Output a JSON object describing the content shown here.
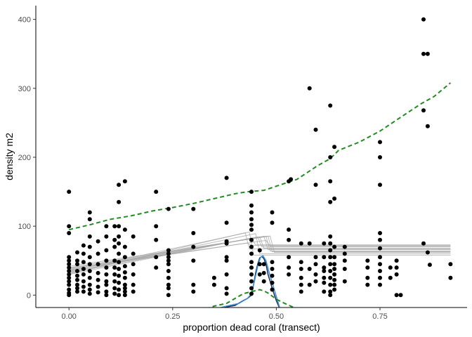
{
  "chart_data": {
    "type": "scatter",
    "title": "",
    "xlabel": "proportion dead coral (transect)",
    "ylabel": "density m2",
    "xlim": [
      -0.08,
      0.96
    ],
    "ylim": [
      -18,
      420
    ],
    "x_ticks": [
      0.0,
      0.25,
      0.5,
      0.75
    ],
    "x_tick_labels": [
      "0.00",
      "0.25",
      "0.50",
      "0.75"
    ],
    "y_ticks": [
      0,
      100,
      200,
      300,
      400
    ],
    "y_tick_labels": [
      "0",
      "100",
      "200",
      "300",
      "400"
    ],
    "grid": false,
    "legend": "none",
    "colors": {
      "points": "#000000",
      "breakpoint_fits": "#a6a6a6",
      "density_dashed": "#228b22",
      "density_dark": "#1f2a5a",
      "density_blue": "#3a8fd8",
      "axis": "#000000"
    },
    "points": [
      [
        0.0,
        150
      ],
      [
        0.0,
        100
      ],
      [
        0.0,
        90
      ],
      [
        0.0,
        55
      ],
      [
        0.0,
        50
      ],
      [
        0.0,
        45
      ],
      [
        0.0,
        40
      ],
      [
        0.0,
        35
      ],
      [
        0.0,
        30
      ],
      [
        0.0,
        25
      ],
      [
        0.0,
        20
      ],
      [
        0.0,
        15
      ],
      [
        0.0,
        8
      ],
      [
        0.0,
        3
      ],
      [
        0.0,
        0
      ],
      [
        0.02,
        62
      ],
      [
        0.02,
        50
      ],
      [
        0.02,
        45
      ],
      [
        0.02,
        35
      ],
      [
        0.02,
        28
      ],
      [
        0.02,
        22
      ],
      [
        0.02,
        15
      ],
      [
        0.02,
        10
      ],
      [
        0.02,
        5
      ],
      [
        0.035,
        72
      ],
      [
        0.035,
        60
      ],
      [
        0.035,
        48
      ],
      [
        0.035,
        38
      ],
      [
        0.035,
        30
      ],
      [
        0.035,
        20
      ],
      [
        0.035,
        12
      ],
      [
        0.035,
        5
      ],
      [
        0.05,
        120
      ],
      [
        0.05,
        110
      ],
      [
        0.05,
        85
      ],
      [
        0.05,
        70
      ],
      [
        0.05,
        55
      ],
      [
        0.05,
        45
      ],
      [
        0.05,
        35
      ],
      [
        0.05,
        25
      ],
      [
        0.05,
        15
      ],
      [
        0.05,
        8
      ],
      [
        0.05,
        2
      ],
      [
        0.07,
        78
      ],
      [
        0.07,
        60
      ],
      [
        0.07,
        45
      ],
      [
        0.07,
        32
      ],
      [
        0.07,
        22
      ],
      [
        0.07,
        12
      ],
      [
        0.07,
        4
      ],
      [
        0.09,
        100
      ],
      [
        0.09,
        85
      ],
      [
        0.09,
        65
      ],
      [
        0.09,
        50
      ],
      [
        0.09,
        40
      ],
      [
        0.09,
        30
      ],
      [
        0.09,
        20
      ],
      [
        0.09,
        15
      ],
      [
        0.09,
        5
      ],
      [
        0.09,
        0
      ],
      [
        0.11,
        100
      ],
      [
        0.11,
        80
      ],
      [
        0.11,
        70
      ],
      [
        0.11,
        50
      ],
      [
        0.11,
        40
      ],
      [
        0.11,
        30
      ],
      [
        0.11,
        20
      ],
      [
        0.11,
        10
      ],
      [
        0.11,
        2
      ],
      [
        0.12,
        160
      ],
      [
        0.12,
        135
      ],
      [
        0.12,
        100
      ],
      [
        0.12,
        85
      ],
      [
        0.12,
        75
      ],
      [
        0.12,
        60
      ],
      [
        0.12,
        48
      ],
      [
        0.12,
        38
      ],
      [
        0.12,
        28
      ],
      [
        0.12,
        18
      ],
      [
        0.12,
        8
      ],
      [
        0.12,
        0
      ],
      [
        0.135,
        165
      ],
      [
        0.135,
        95
      ],
      [
        0.135,
        70
      ],
      [
        0.135,
        55
      ],
      [
        0.135,
        42
      ],
      [
        0.135,
        33
      ],
      [
        0.135,
        25
      ],
      [
        0.135,
        15
      ],
      [
        0.135,
        10
      ],
      [
        0.135,
        5
      ],
      [
        0.135,
        0
      ],
      [
        0.155,
        85
      ],
      [
        0.155,
        60
      ],
      [
        0.155,
        45
      ],
      [
        0.155,
        30
      ],
      [
        0.155,
        15
      ],
      [
        0.155,
        5
      ],
      [
        0.21,
        150
      ],
      [
        0.21,
        100
      ],
      [
        0.21,
        80
      ],
      [
        0.21,
        55
      ],
      [
        0.21,
        40
      ],
      [
        0.24,
        125
      ],
      [
        0.24,
        65
      ],
      [
        0.24,
        60
      ],
      [
        0.24,
        55
      ],
      [
        0.24,
        50
      ],
      [
        0.24,
        45
      ],
      [
        0.24,
        35
      ],
      [
        0.24,
        25
      ],
      [
        0.24,
        15
      ],
      [
        0.24,
        10
      ],
      [
        0.24,
        0
      ],
      [
        0.3,
        125
      ],
      [
        0.3,
        90
      ],
      [
        0.3,
        70
      ],
      [
        0.3,
        50
      ],
      [
        0.3,
        15
      ],
      [
        0.3,
        5
      ],
      [
        0.35,
        25
      ],
      [
        0.35,
        15
      ],
      [
        0.38,
        170
      ],
      [
        0.38,
        105
      ],
      [
        0.38,
        78
      ],
      [
        0.38,
        75
      ],
      [
        0.38,
        55
      ],
      [
        0.38,
        50
      ],
      [
        0.38,
        30
      ],
      [
        0.38,
        10
      ],
      [
        0.38,
        2
      ],
      [
        0.44,
        150
      ],
      [
        0.44,
        130
      ],
      [
        0.44,
        120
      ],
      [
        0.44,
        110
      ],
      [
        0.44,
        102
      ],
      [
        0.44,
        95
      ],
      [
        0.44,
        80
      ],
      [
        0.44,
        70
      ],
      [
        0.44,
        60
      ],
      [
        0.44,
        48
      ],
      [
        0.44,
        40
      ],
      [
        0.44,
        30
      ],
      [
        0.44,
        20
      ],
      [
        0.44,
        10
      ],
      [
        0.44,
        2
      ],
      [
        0.46,
        65
      ],
      [
        0.46,
        45
      ],
      [
        0.46,
        30
      ],
      [
        0.47,
        45
      ],
      [
        0.47,
        32
      ],
      [
        0.47,
        20
      ],
      [
        0.49,
        120
      ],
      [
        0.49,
        105
      ],
      [
        0.49,
        48
      ],
      [
        0.49,
        38
      ],
      [
        0.49,
        28
      ],
      [
        0.49,
        18
      ],
      [
        0.49,
        8
      ],
      [
        0.53,
        165
      ],
      [
        0.53,
        95
      ],
      [
        0.53,
        80
      ],
      [
        0.53,
        55
      ],
      [
        0.53,
        40
      ],
      [
        0.53,
        30
      ],
      [
        0.535,
        168
      ],
      [
        0.56,
        75
      ],
      [
        0.56,
        48
      ],
      [
        0.56,
        38
      ],
      [
        0.56,
        25
      ],
      [
        0.56,
        15
      ],
      [
        0.56,
        5
      ],
      [
        0.58,
        300
      ],
      [
        0.58,
        75
      ],
      [
        0.58,
        38
      ],
      [
        0.58,
        15
      ],
      [
        0.595,
        240
      ],
      [
        0.595,
        160
      ],
      [
        0.595,
        55
      ],
      [
        0.595,
        45
      ],
      [
        0.595,
        30
      ],
      [
        0.595,
        20
      ],
      [
        0.615,
        75
      ],
      [
        0.615,
        55
      ],
      [
        0.615,
        40
      ],
      [
        0.615,
        35
      ],
      [
        0.615,
        25
      ],
      [
        0.615,
        18
      ],
      [
        0.615,
        5
      ],
      [
        0.63,
        275
      ],
      [
        0.63,
        200
      ],
      [
        0.63,
        165
      ],
      [
        0.63,
        135
      ],
      [
        0.63,
        85
      ],
      [
        0.63,
        75
      ],
      [
        0.63,
        65
      ],
      [
        0.63,
        55
      ],
      [
        0.63,
        45
      ],
      [
        0.63,
        35
      ],
      [
        0.63,
        25
      ],
      [
        0.63,
        15
      ],
      [
        0.63,
        5
      ],
      [
        0.63,
        0
      ],
      [
        0.64,
        215
      ],
      [
        0.64,
        140
      ],
      [
        0.64,
        70
      ],
      [
        0.64,
        55
      ],
      [
        0.64,
        45
      ],
      [
        0.64,
        38
      ],
      [
        0.64,
        30
      ],
      [
        0.64,
        22
      ],
      [
        0.64,
        15
      ],
      [
        0.64,
        8
      ],
      [
        0.665,
        70
      ],
      [
        0.665,
        60
      ],
      [
        0.665,
        50
      ],
      [
        0.665,
        38
      ],
      [
        0.665,
        20
      ],
      [
        0.72,
        50
      ],
      [
        0.72,
        40
      ],
      [
        0.72,
        25
      ],
      [
        0.72,
        15
      ],
      [
        0.75,
        222
      ],
      [
        0.75,
        200
      ],
      [
        0.75,
        160
      ],
      [
        0.75,
        90
      ],
      [
        0.75,
        80
      ],
      [
        0.75,
        68
      ],
      [
        0.75,
        55
      ],
      [
        0.75,
        45
      ],
      [
        0.75,
        35
      ],
      [
        0.75,
        25
      ],
      [
        0.75,
        15
      ],
      [
        0.775,
        40
      ],
      [
        0.775,
        25
      ],
      [
        0.79,
        50
      ],
      [
        0.79,
        40
      ],
      [
        0.79,
        30
      ],
      [
        0.79,
        0
      ],
      [
        0.8,
        0
      ],
      [
        0.855,
        400
      ],
      [
        0.855,
        350
      ],
      [
        0.855,
        268
      ],
      [
        0.855,
        75
      ],
      [
        0.865,
        350
      ],
      [
        0.865,
        245
      ],
      [
        0.865,
        62
      ],
      [
        0.87,
        44
      ],
      [
        0.92,
        45
      ],
      [
        0.92,
        25
      ]
    ],
    "breakpoint_fits": [
      {
        "intercept": 30,
        "slope": 120,
        "breakpoint": 0.44,
        "plateau": 73
      },
      {
        "intercept": 32,
        "slope": 115,
        "breakpoint": 0.455,
        "plateau": 70
      },
      {
        "intercept": 34,
        "slope": 110,
        "breakpoint": 0.46,
        "plateau": 68
      },
      {
        "intercept": 36,
        "slope": 105,
        "breakpoint": 0.47,
        "plateau": 66
      },
      {
        "intercept": 38,
        "slope": 100,
        "breakpoint": 0.475,
        "plateau": 64
      },
      {
        "intercept": 40,
        "slope": 95,
        "breakpoint": 0.48,
        "plateau": 63
      },
      {
        "intercept": 42,
        "slope": 90,
        "breakpoint": 0.485,
        "plateau": 62
      },
      {
        "intercept": 33,
        "slope": 125,
        "breakpoint": 0.45,
        "plateau": 60
      },
      {
        "intercept": 35,
        "slope": 130,
        "breakpoint": 0.435,
        "plateau": 58
      },
      {
        "intercept": 37,
        "slope": 90,
        "breakpoint": 0.43,
        "plateau": 72
      },
      {
        "intercept": 39,
        "slope": 85,
        "breakpoint": 0.475,
        "plateau": 71
      },
      {
        "intercept": 31,
        "slope": 140,
        "breakpoint": 0.425,
        "plateau": 67
      }
    ],
    "fit_x_end": 0.92,
    "dashed_upper": [
      [
        0.0,
        95
      ],
      [
        0.05,
        102
      ],
      [
        0.1,
        110
      ],
      [
        0.15,
        115
      ],
      [
        0.2,
        122
      ],
      [
        0.25,
        127
      ],
      [
        0.3,
        133
      ],
      [
        0.35,
        140
      ],
      [
        0.4,
        147
      ],
      [
        0.43,
        150
      ],
      [
        0.45,
        151
      ],
      [
        0.47,
        152
      ],
      [
        0.5,
        158
      ],
      [
        0.55,
        168
      ],
      [
        0.6,
        188
      ],
      [
        0.63,
        198
      ],
      [
        0.65,
        210
      ],
      [
        0.7,
        222
      ],
      [
        0.75,
        238
      ],
      [
        0.8,
        258
      ],
      [
        0.85,
        278
      ],
      [
        0.88,
        288
      ],
      [
        0.9,
        298
      ],
      [
        0.92,
        308
      ]
    ],
    "dashed_lower": [
      [
        0.33,
        -20
      ],
      [
        0.35,
        -16
      ],
      [
        0.38,
        -12
      ],
      [
        0.4,
        -5
      ],
      [
        0.42,
        2
      ],
      [
        0.44,
        5
      ],
      [
        0.46,
        8
      ],
      [
        0.47,
        6
      ],
      [
        0.48,
        3
      ],
      [
        0.5,
        -6
      ],
      [
        0.52,
        -12
      ],
      [
        0.55,
        -20
      ],
      [
        0.6,
        -24
      ]
    ],
    "density_dark": [
      [
        0.33,
        -22
      ],
      [
        0.37,
        -18
      ],
      [
        0.4,
        -15
      ],
      [
        0.42,
        -8
      ],
      [
        0.43,
        -5
      ],
      [
        0.44,
        0
      ],
      [
        0.445,
        15
      ],
      [
        0.45,
        32
      ],
      [
        0.455,
        45
      ],
      [
        0.46,
        54
      ],
      [
        0.465,
        56
      ],
      [
        0.47,
        53
      ],
      [
        0.475,
        45
      ],
      [
        0.48,
        30
      ],
      [
        0.49,
        10
      ],
      [
        0.5,
        -8
      ],
      [
        0.51,
        -22
      ]
    ],
    "density_blue": [
      [
        0.34,
        -22
      ],
      [
        0.38,
        -16
      ],
      [
        0.41,
        -12
      ],
      [
        0.43,
        -5
      ],
      [
        0.44,
        2
      ],
      [
        0.448,
        22
      ],
      [
        0.455,
        42
      ],
      [
        0.462,
        55
      ],
      [
        0.468,
        57
      ],
      [
        0.475,
        50
      ],
      [
        0.483,
        32
      ],
      [
        0.493,
        12
      ],
      [
        0.503,
        -8
      ],
      [
        0.51,
        -22
      ]
    ]
  }
}
